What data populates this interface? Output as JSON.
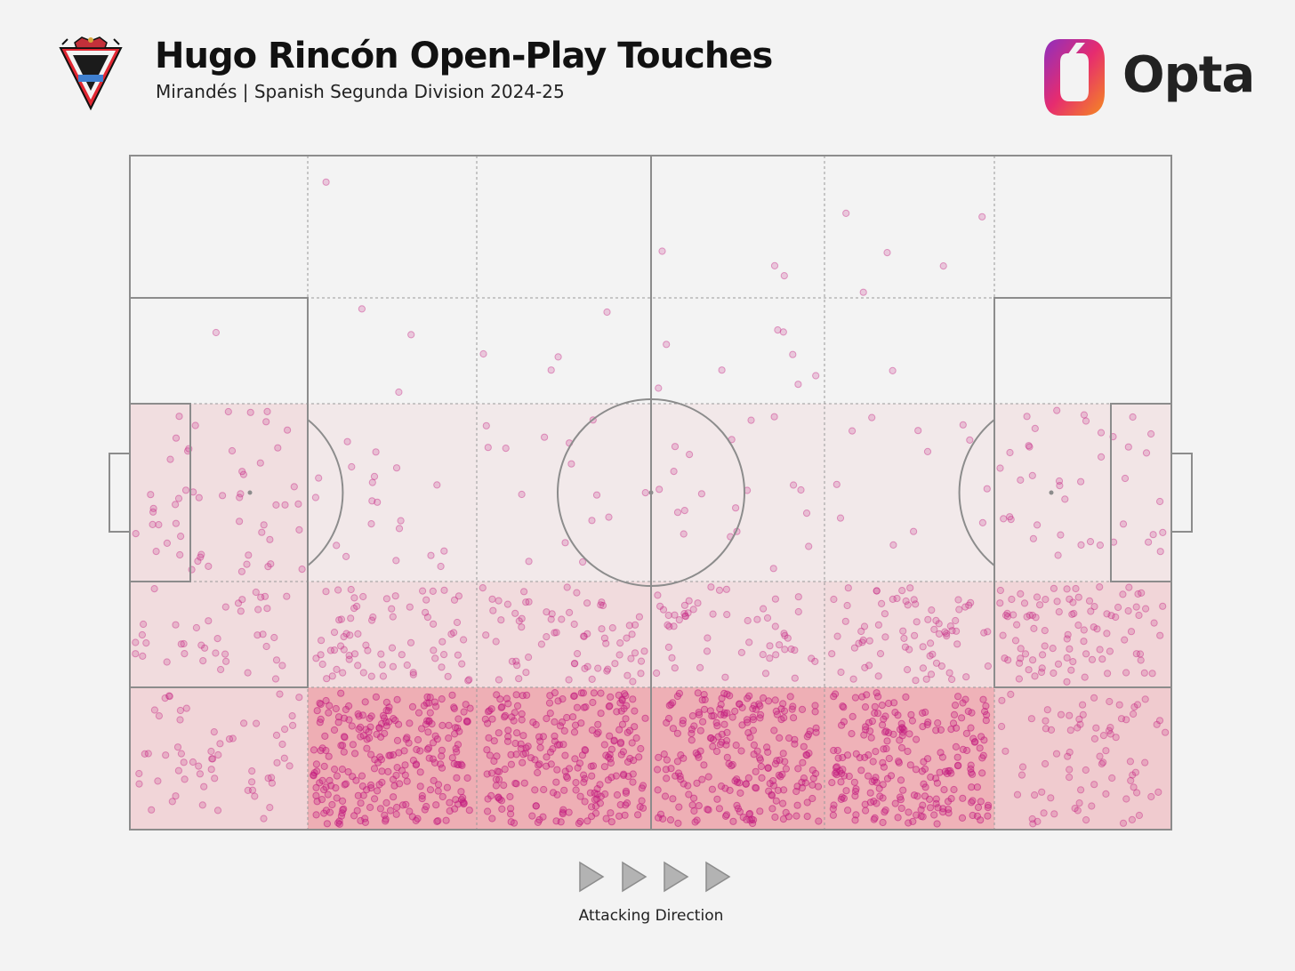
{
  "header": {
    "title": "Hugo Rincón Open-Play Touches",
    "subtitle": "Mirandés | Spanish Segunda Division 2024-25",
    "brand": "Opta"
  },
  "icons": {
    "crest": "club-crest-icon",
    "brand_logo": "opta-logo-icon",
    "direction": "play-arrow-icon"
  },
  "footer": {
    "direction_label": "Attacking Direction"
  },
  "colors": {
    "background": "#f3f3f3",
    "pitch_lines": "#8c8c8c",
    "dots": "#c2187e",
    "zone_heat": "#e8505f",
    "opta_gradient": [
      "#8e2fbf",
      "#e62c6f",
      "#f58a1f"
    ]
  },
  "chart_data": {
    "type": "heatmap",
    "description": "zone grid: 6 columns x 5 rows over the pitch, heat intensity 0-1 per zone; touch points in pitch units (x 0-100 attacking left to right, y 0-100 top to bottom)",
    "zones": [
      [
        0.0,
        0.0,
        0.0,
        0.0,
        0.0,
        0.0
      ],
      [
        0.0,
        0.0,
        0.0,
        0.0,
        0.0,
        0.0
      ],
      [
        0.18,
        0.05,
        0.04,
        0.05,
        0.04,
        0.1
      ],
      [
        0.2,
        0.2,
        0.22,
        0.18,
        0.22,
        0.3
      ],
      [
        0.3,
        0.8,
        0.78,
        0.78,
        0.75,
        0.42
      ]
    ],
    "touches_per_zone": [
      [
        0,
        1,
        0,
        3,
        5,
        0
      ],
      [
        1,
        3,
        4,
        8,
        1,
        0
      ],
      [
        55,
        20,
        15,
        20,
        12,
        40
      ],
      [
        40,
        75,
        70,
        55,
        75,
        95
      ],
      [
        60,
        260,
        250,
        240,
        230,
        80
      ]
    ]
  }
}
